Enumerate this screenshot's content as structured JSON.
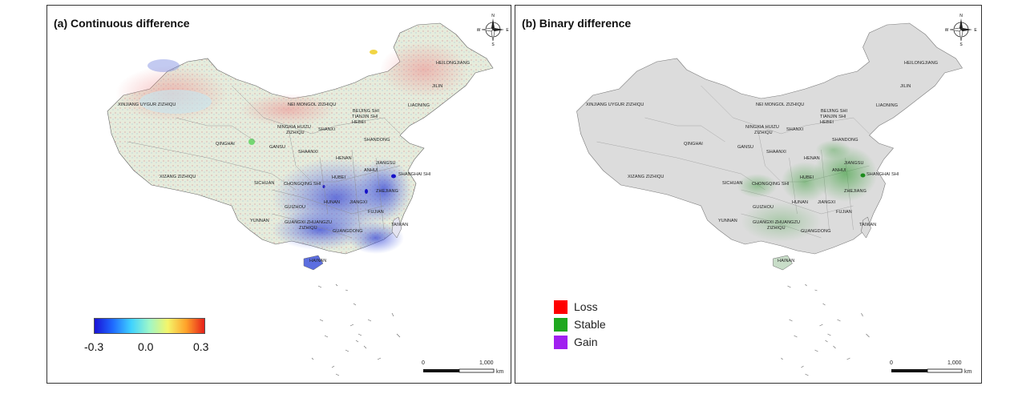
{
  "panels": [
    {
      "title": "(a) Continuous difference",
      "colorbar": {
        "min_label": "-0.3",
        "mid_label": "0.0",
        "max_label": "0.3",
        "colors": [
          "#1a12d6",
          "#1f6bff",
          "#3fd2ff",
          "#9ff7c8",
          "#f4f56a",
          "#ffa32a",
          "#e6201a"
        ]
      },
      "scale": {
        "zero": "0",
        "max": "1,000",
        "unit": "km"
      }
    },
    {
      "title": "(b) Binary difference",
      "legend": [
        {
          "label": "Loss",
          "color": "#ff0000"
        },
        {
          "label": "Stable",
          "color": "#1fa81f"
        },
        {
          "label": "Gain",
          "color": "#a020f0"
        }
      ],
      "scale": {
        "zero": "0",
        "max": "1,000",
        "unit": "km"
      }
    }
  ],
  "compass": {
    "n": "N",
    "s": "S",
    "e": "E",
    "w": "W"
  },
  "places": {
    "heilongjiang": "HEILONGJIANG",
    "jilin": "JILIN",
    "liaoning": "LIAONING",
    "nei_mongol": "NEI MONGOL ZIZHIQU",
    "xinjiang": "XINJIANG UYGUR ZIZHIQU",
    "beijing": "BEIJING SHI",
    "tianjin": "TIANJIN SHI",
    "hebei": "HEBEI",
    "ningxia": "NINGXIA HUIZU",
    "zizhiqu": "ZIZHIQU",
    "shanxi": "SHANXI",
    "shandong": "SHANDONG",
    "qinghai": "QINGHAI",
    "gansu": "GANSU",
    "shaanxi": "SHAANXI",
    "henan": "HENAN",
    "jiangsu": "JIANGSU",
    "xizang": "XIZANG ZIZHIQU",
    "anhui": "ANHUI",
    "shanghai": "SHANGHAI SHI",
    "sichuan": "SICHUAN",
    "chongqing": "CHONGQING SHI",
    "hubei": "HUBEI",
    "zhejiang": "ZHEJIANG",
    "hunan": "HUNAN",
    "jiangxi": "JIANGXI",
    "guizhou": "GUIZHOU",
    "fujian": "FUJIAN",
    "yunnan": "YUNNAN",
    "guangxi": "GUANGXI ZHUANGZU",
    "guangxi2": "ZIZHIQU",
    "guangdong": "GUANGDONG",
    "taiwan": "TAIWAN",
    "hainan": "HAINAN"
  }
}
